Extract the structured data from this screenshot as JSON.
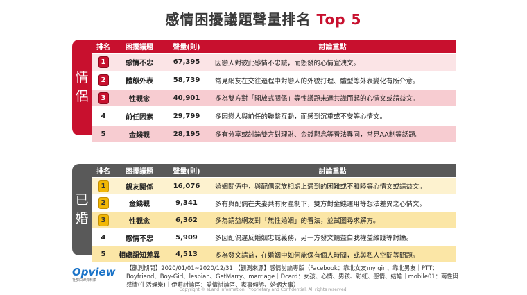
{
  "title": {
    "main": "感情困擾議題聲量排名",
    "highlight": "Top 5"
  },
  "headers": {
    "rank": "排名",
    "topic": "困擾議題",
    "volume": "聲量(則)",
    "point": "討論重點"
  },
  "couple": {
    "tab_chars": [
      "情",
      "侶"
    ],
    "rows": [
      {
        "rank": "1",
        "topic": "感情不忠",
        "volume": "67,395",
        "point": "因戀人對彼此感情不忠誠，而怒發的心情宣洩文。"
      },
      {
        "rank": "2",
        "topic": "體態外表",
        "volume": "58,739",
        "point": "常見網友在交往過程中對戀人的外貌打理、體型等外表變化有所介意。"
      },
      {
        "rank": "3",
        "topic": "性觀念",
        "volume": "40,901",
        "point": "多為雙方對「開放式關係」等性議題未達共識而起的心情文或請益文。"
      },
      {
        "rank": "4",
        "topic": "前任因素",
        "volume": "29,799",
        "point": "多因戀人與前任的聯繫互動，而感到沉重或不安等心情文。"
      },
      {
        "rank": "5",
        "topic": "金錢觀",
        "volume": "28,195",
        "point": "多有分享或討論雙方對理財、金錢觀念等看法異同，常見AA制等話題。"
      }
    ]
  },
  "married": {
    "tab_chars": [
      "已",
      "婚"
    ],
    "rows": [
      {
        "rank": "1",
        "topic": "親友關係",
        "volume": "16,076",
        "point": "婚姻關係中，與配偶家族相處上遇到的困難或不和睦等心情文或請益文。"
      },
      {
        "rank": "2",
        "topic": "金錢觀",
        "volume": "9,341",
        "point": "多有與配偶在夫妻共有財產制下，雙方對金錢運用等想法差異之心情文。"
      },
      {
        "rank": "3",
        "topic": "性觀念",
        "volume": "6,362",
        "point": "多為請益網友對「無性婚姻」的看法，並試圖尋求解方。"
      },
      {
        "rank": "4",
        "topic": "感情不忠",
        "volume": "5,909",
        "point": "多因配偶違反婚姻忠誠義務，另一方發文請益自我權益維護等討論。"
      },
      {
        "rank": "5",
        "topic": "相處認知差異",
        "volume": "4,513",
        "point": "多為發文請益，在婚姻中如何能保有個人時間，或與私人空間等問題。"
      }
    ]
  },
  "logo": {
    "word": "Opview",
    "sub": "社群口碑資料庫"
  },
  "footnote": "【觀測期間】2020/01/01~2020/12/31 【觀測來源】感情討論專版（Facebook：靠北女友my girl、靠北男友｜PTT：Boyfriend、Boy-Girl、lesbian、GetMarry、marriage｜Dcard：女孩、心情、男孩、彩虹、感情、結婚｜mobile01：兩性與感情(生活娛樂)｜伊莉討論區：愛情討論區、家事傾訴、婚姻大事）",
  "copyright": "Copyright © eLand Information. Proprietary and Confidential. All rights reserved."
}
